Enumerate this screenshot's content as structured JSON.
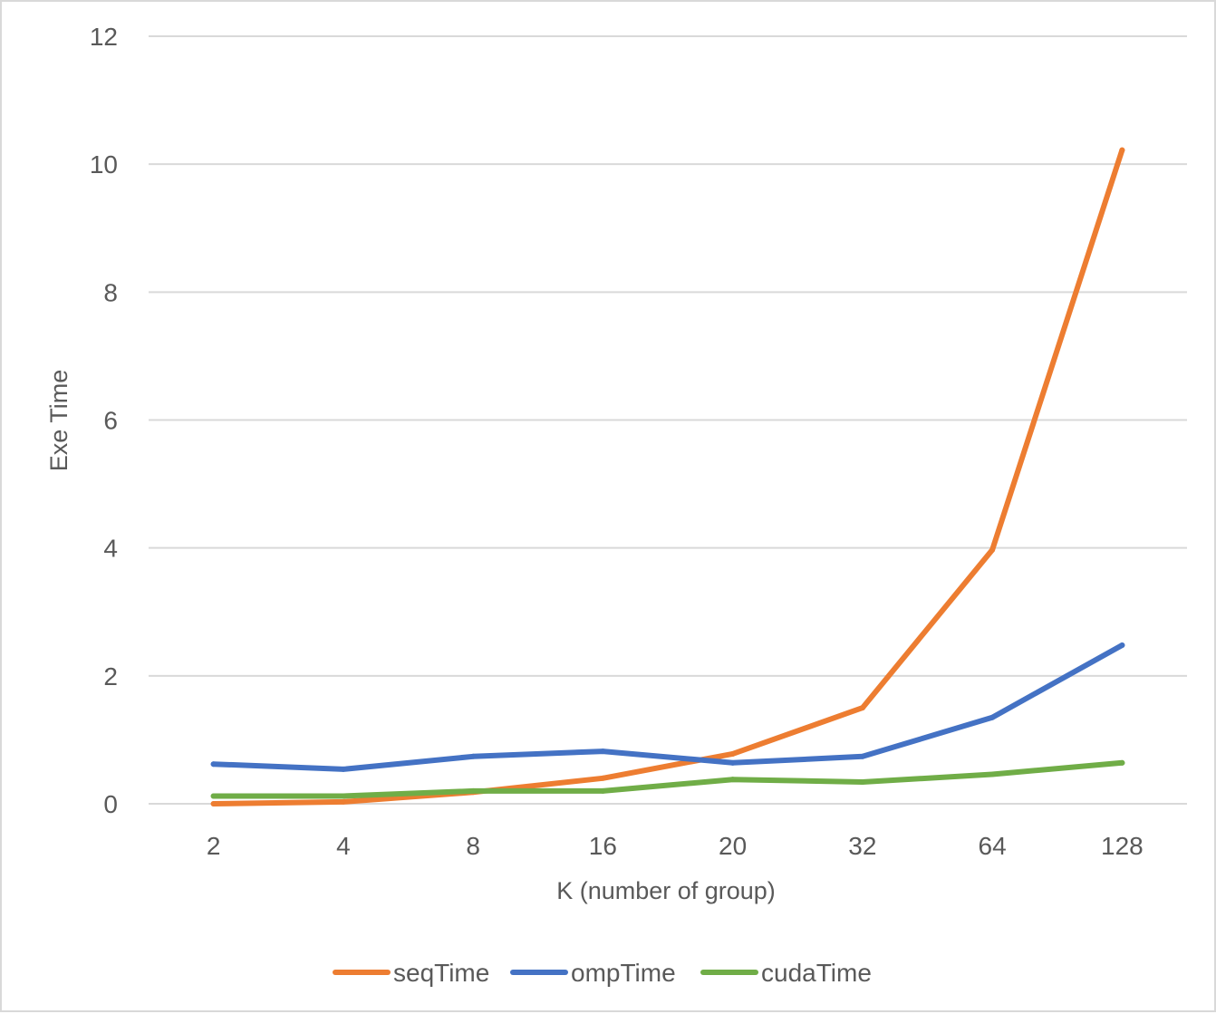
{
  "chart_data": {
    "type": "line",
    "categories": [
      "2",
      "4",
      "8",
      "16",
      "20",
      "32",
      "64",
      "128"
    ],
    "series": [
      {
        "name": "seqTime",
        "color": "#ed7d31",
        "values": [
          0.0,
          0.03,
          0.18,
          0.4,
          0.78,
          1.5,
          3.97,
          10.22
        ]
      },
      {
        "name": "ompTime",
        "color": "#4472c4",
        "values": [
          0.62,
          0.54,
          0.74,
          0.82,
          0.64,
          0.74,
          1.35,
          2.48
        ]
      },
      {
        "name": "cudaTime",
        "color": "#70ad47",
        "values": [
          0.12,
          0.12,
          0.2,
          0.2,
          0.38,
          0.34,
          0.46,
          0.64
        ]
      }
    ],
    "xlabel": "K (number of group)",
    "ylabel": "Exe Time",
    "ylim": [
      0,
      12
    ],
    "yticks": [
      "0",
      "2",
      "4",
      "6",
      "8",
      "10",
      "12"
    ],
    "grid": true,
    "legend_position": "bottom"
  }
}
